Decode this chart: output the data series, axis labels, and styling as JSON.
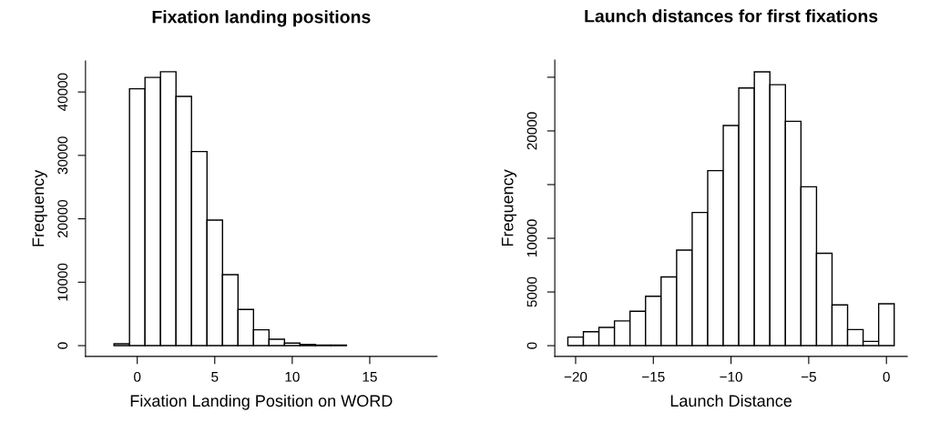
{
  "chart_data": [
    {
      "type": "histogram",
      "title": "Fixation landing positions",
      "xlabel": "Fixation Landing Position on WORD",
      "ylabel": "Frequency",
      "bins": [
        -2.5,
        -1.5,
        -0.5,
        0.5,
        1.5,
        2.5,
        3.5,
        4.5,
        5.5,
        6.5,
        7.5,
        8.5,
        9.5,
        10.5,
        11.5,
        12.5,
        13.5,
        14.5,
        15.5,
        16.5,
        17.5,
        18.5
      ],
      "values": [
        0,
        300,
        40500,
        42300,
        43200,
        39300,
        30600,
        19800,
        11200,
        5700,
        2500,
        1000,
        400,
        200,
        100,
        100,
        0,
        0,
        0,
        0,
        0
      ],
      "color": "#ffffff",
      "xlim": [
        -3.34,
        19.34
      ],
      "ylim": [
        -1700,
        44900
      ],
      "xticks": [
        0,
        5,
        10,
        15
      ],
      "yticks": [
        0,
        10000,
        20000,
        30000,
        40000
      ],
      "grid": false,
      "legend": false
    },
    {
      "type": "histogram",
      "title": "Launch distances for first fixations",
      "xlabel": "Launch Distance",
      "ylabel": "Frequency",
      "bins": [
        -20.5,
        -19.5,
        -18.5,
        -17.5,
        -16.5,
        -15.5,
        -14.5,
        -13.5,
        -12.5,
        -11.5,
        -10.5,
        -9.5,
        -8.5,
        -7.5,
        -6.5,
        -5.5,
        -4.5,
        -3.5,
        -2.5,
        -1.5,
        -0.5,
        0.5
      ],
      "values": [
        800,
        1300,
        1700,
        2300,
        3200,
        4600,
        6400,
        8900,
        12400,
        16300,
        20500,
        24000,
        25500,
        24300,
        20900,
        14800,
        8600,
        3800,
        1500,
        400,
        3900
      ],
      "color": "#ffffff",
      "xlim": [
        -21.34,
        1.34
      ],
      "ylim": [
        -1000,
        26600
      ],
      "xticks": [
        {
          "value": -20,
          "label": "−20"
        },
        {
          "value": -15,
          "label": "−15"
        },
        {
          "value": -10,
          "label": "−10"
        },
        {
          "value": -5,
          "label": "−5"
        },
        0
      ],
      "yticks": [
        0,
        5000,
        10000,
        {
          "value": 15000,
          "label": null
        },
        20000,
        {
          "value": 25000,
          "label": null
        }
      ],
      "grid": false,
      "legend": false
    }
  ]
}
